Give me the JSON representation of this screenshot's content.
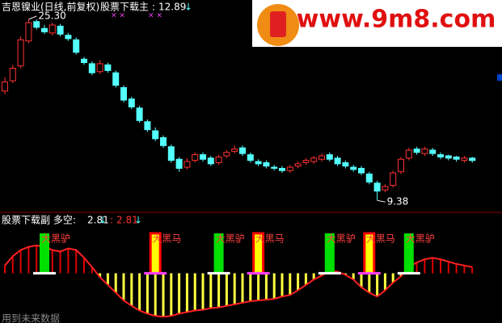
{
  "chart_data": {
    "type": "candlestick",
    "title": "吉恩镍业(日线,前复权)",
    "main_label": "股票下载主 :",
    "main_value": 12.89,
    "main_arrow": "↓",
    "cross_marks": [
      "× ×",
      "× ×"
    ],
    "up_color": "#ff3232",
    "down_color": "#54ffff",
    "ylim": [
      8.4,
      27
    ],
    "open": [
      19.0,
      19.9,
      21.2,
      23.4,
      25.1,
      24.5,
      24.1,
      24.7,
      23.9,
      23.5,
      21.8,
      21.4,
      20.7,
      21.3,
      20.6,
      19.3,
      18.3,
      17.5,
      16.3,
      15.5,
      14.9,
      14.1,
      13.0,
      12.3,
      12.9,
      13.4,
      13.1,
      12.7,
      13.3,
      13.7,
      14.0,
      13.4,
      12.8,
      12.7,
      12.3,
      12.2,
      12.0,
      12.4,
      12.7,
      12.8,
      13.0,
      13.4,
      13.1,
      12.7,
      12.3,
      12.2,
      11.7,
      10.9,
      10.3,
      10.7,
      11.9,
      13.1,
      13.9,
      13.5,
      13.8,
      13.4,
      13.3,
      13.2,
      12.9,
      13.1
    ],
    "high": [
      20.2,
      21.3,
      23.8,
      25.3,
      25.3,
      24.8,
      25.0,
      24.9,
      24.1,
      23.7,
      22.0,
      21.6,
      21.7,
      21.5,
      20.8,
      19.5,
      18.5,
      17.7,
      16.5,
      15.8,
      15.1,
      14.3,
      13.2,
      13.1,
      13.6,
      13.6,
      13.3,
      13.4,
      13.8,
      14.2,
      14.2,
      13.6,
      13.0,
      12.9,
      12.5,
      12.4,
      12.5,
      12.8,
      13.1,
      13.3,
      13.5,
      13.6,
      13.3,
      12.9,
      12.5,
      12.4,
      11.9,
      11.1,
      10.8,
      12.0,
      13.2,
      14.0,
      14.1,
      14.1,
      14.0,
      13.6,
      13.4,
      13.3,
      13.3,
      13.2
    ],
    "low": [
      18.7,
      19.7,
      21.0,
      23.2,
      24.4,
      24.0,
      23.9,
      23.8,
      23.4,
      22.2,
      21.3,
      20.4,
      20.5,
      20.6,
      19.3,
      18.0,
      17.4,
      16.2,
      15.4,
      14.6,
      14.0,
      12.7,
      11.9,
      12.1,
      12.7,
      12.8,
      12.4,
      12.5,
      13.1,
      13.5,
      13.3,
      12.7,
      12.4,
      12.2,
      12.0,
      11.8,
      11.8,
      12.2,
      12.5,
      12.6,
      12.8,
      12.8,
      12.4,
      12.2,
      11.9,
      11.6,
      10.8,
      9.38,
      10.1,
      10.5,
      11.7,
      12.9,
      13.4,
      13.3,
      13.3,
      13.0,
      12.9,
      12.8,
      12.7,
      12.7
    ],
    "close": [
      19.8,
      21.0,
      23.5,
      25.0,
      24.6,
      24.2,
      24.8,
      24.0,
      23.6,
      22.4,
      21.5,
      20.6,
      21.4,
      20.8,
      19.5,
      18.2,
      17.6,
      16.4,
      15.6,
      14.8,
      14.2,
      12.9,
      12.2,
      12.8,
      13.4,
      13.0,
      12.6,
      13.2,
      13.6,
      13.9,
      13.5,
      12.9,
      12.6,
      12.4,
      12.2,
      12.0,
      12.3,
      12.6,
      12.9,
      13.1,
      13.3,
      13.0,
      12.6,
      12.4,
      12.1,
      11.8,
      11.0,
      10.2,
      10.6,
      11.8,
      13.0,
      13.8,
      13.6,
      13.9,
      13.5,
      13.2,
      13.1,
      13.0,
      13.1,
      12.89
    ],
    "high_annotation": {
      "value": 25.3,
      "label": "25.30"
    },
    "low_annotation": {
      "value": 9.38,
      "label": "9.38"
    },
    "sub": {
      "label": "股票下载副  多空:",
      "value": 2.81,
      "arrow": "↓",
      "sep": ":",
      "value2": 2.81,
      "arrow2": "↓",
      "ylim": [
        -62,
        40
      ],
      "pos_color": "#e00000",
      "neg_color": "#ffff40",
      "values": [
        10,
        22,
        30,
        34,
        36,
        34,
        30,
        28,
        32,
        30,
        20,
        8,
        -5,
        -15,
        -25,
        -35,
        -42,
        -48,
        -52,
        -55,
        -56,
        -55,
        -52,
        -50,
        -48,
        -47,
        -45,
        -44,
        -42,
        -40,
        -38,
        -36,
        -35,
        -34,
        -33,
        -30,
        -28,
        -22,
        -15,
        -8,
        -3,
        3,
        2,
        -2,
        -8,
        -18,
        -25,
        -30,
        -22,
        -12,
        -4,
        8,
        14,
        18,
        20,
        18,
        15,
        12,
        10,
        8
      ],
      "signals": [
        null,
        null,
        null,
        null,
        null,
        "大黑驴",
        null,
        null,
        null,
        null,
        null,
        null,
        null,
        null,
        null,
        null,
        null,
        null,
        null,
        "大黑马",
        null,
        null,
        null,
        null,
        null,
        null,
        null,
        "大黑驴",
        null,
        null,
        null,
        null,
        "大黑马",
        null,
        null,
        null,
        null,
        null,
        null,
        null,
        null,
        "大黑驴",
        null,
        null,
        null,
        null,
        "大黑马",
        null,
        null,
        null,
        null,
        "大黑驴",
        null,
        null,
        null,
        null,
        null,
        null,
        null,
        null
      ],
      "signal_colors": [
        null,
        null,
        null,
        null,
        null,
        "#00e000",
        null,
        null,
        null,
        null,
        null,
        null,
        null,
        null,
        null,
        null,
        null,
        null,
        null,
        "#ffff00",
        null,
        null,
        null,
        null,
        null,
        null,
        null,
        "#00e000",
        null,
        null,
        null,
        null,
        "#ffff00",
        null,
        null,
        null,
        null,
        null,
        null,
        null,
        null,
        "#00e000",
        null,
        null,
        null,
        null,
        "#ffff00",
        null,
        null,
        null,
        null,
        "#00e000",
        null,
        null,
        null,
        null,
        null,
        null,
        null,
        null
      ]
    },
    "footer": "用到未来数据",
    "watermark": "www.9m8.com"
  }
}
